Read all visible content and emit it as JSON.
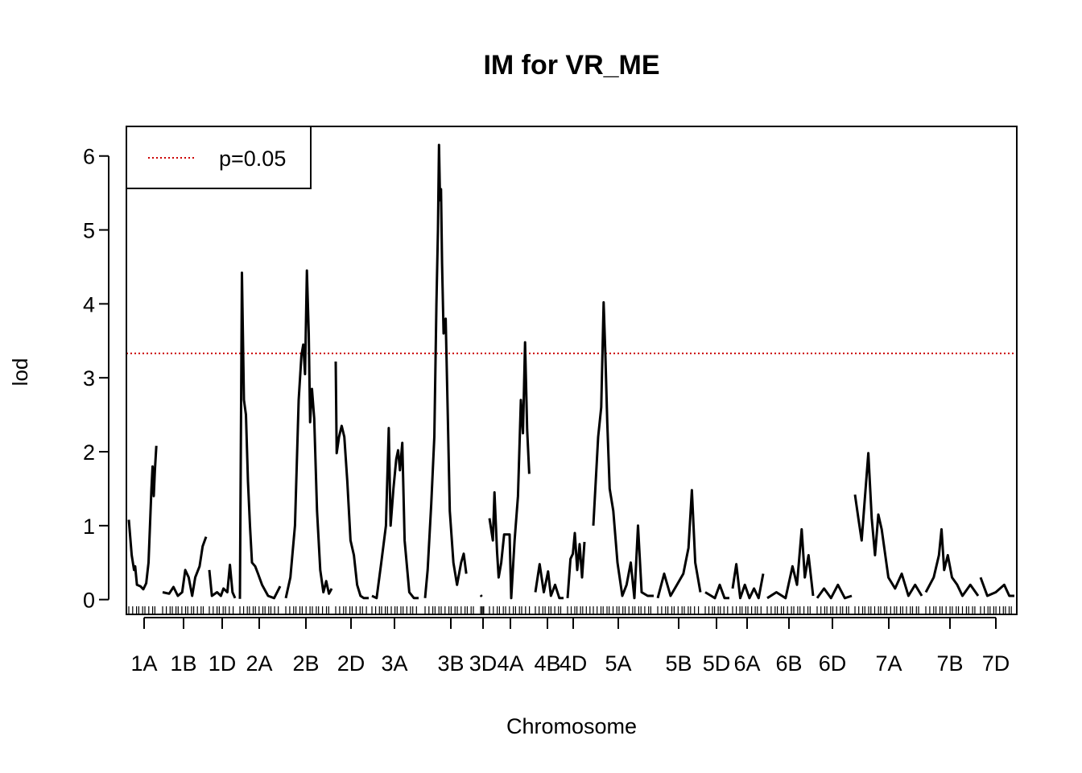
{
  "chart_data": {
    "type": "line",
    "title": "IM for VR_ME",
    "xlabel": "Chromosome",
    "ylabel": "lod",
    "ylim": [
      -0.2,
      6.4
    ],
    "yticks": [
      0,
      1,
      2,
      3,
      4,
      5,
      6
    ],
    "threshold": {
      "label": "p=0.05",
      "value": 3.33,
      "color": "#cc0000"
    },
    "legend": {
      "placement": "top-left",
      "entries": [
        "p=0.05"
      ]
    },
    "line_color": "#000000",
    "chromosomes": [
      {
        "name": "1A",
        "points": [
          [
            0,
            1.08
          ],
          [
            0.1,
            0.6
          ],
          [
            0.18,
            0.4
          ],
          [
            0.22,
            0.45
          ],
          [
            0.28,
            0.2
          ],
          [
            0.4,
            0.18
          ],
          [
            0.5,
            0.14
          ],
          [
            0.6,
            0.22
          ],
          [
            0.68,
            0.5
          ],
          [
            0.78,
            1.5
          ],
          [
            0.82,
            1.8
          ],
          [
            0.86,
            1.4
          ],
          [
            0.9,
            1.75
          ],
          [
            0.95,
            2.08
          ]
        ]
      },
      {
        "name": "1B",
        "points": [
          [
            0,
            0.1
          ],
          [
            0.15,
            0.08
          ],
          [
            0.25,
            0.17
          ],
          [
            0.35,
            0.05
          ],
          [
            0.45,
            0.1
          ],
          [
            0.52,
            0.4
          ],
          [
            0.6,
            0.3
          ],
          [
            0.68,
            0.05
          ],
          [
            0.75,
            0.3
          ],
          [
            0.85,
            0.45
          ],
          [
            0.92,
            0.72
          ],
          [
            1.0,
            0.85
          ]
        ]
      },
      {
        "name": "1D",
        "points": [
          [
            0,
            0.4
          ],
          [
            0.1,
            0.05
          ],
          [
            0.3,
            0.1
          ],
          [
            0.45,
            0.05
          ],
          [
            0.55,
            0.15
          ],
          [
            0.7,
            0.1
          ],
          [
            0.8,
            0.47
          ],
          [
            0.9,
            0.1
          ],
          [
            1.0,
            0.02
          ]
        ]
      },
      {
        "name": "2A",
        "points": [
          [
            0,
            0.01
          ],
          [
            0.05,
            4.42
          ],
          [
            0.1,
            2.7
          ],
          [
            0.15,
            2.5
          ],
          [
            0.2,
            1.6
          ],
          [
            0.25,
            1.0
          ],
          [
            0.3,
            0.5
          ],
          [
            0.38,
            0.45
          ],
          [
            0.45,
            0.35
          ],
          [
            0.55,
            0.2
          ],
          [
            0.7,
            0.05
          ],
          [
            0.85,
            0.02
          ],
          [
            1.0,
            0.18
          ]
        ]
      },
      {
        "name": "2B",
        "points": [
          [
            0,
            0.02
          ],
          [
            0.1,
            0.3
          ],
          [
            0.2,
            1.0
          ],
          [
            0.28,
            2.7
          ],
          [
            0.34,
            3.3
          ],
          [
            0.38,
            3.45
          ],
          [
            0.42,
            3.05
          ],
          [
            0.46,
            4.45
          ],
          [
            0.5,
            3.6
          ],
          [
            0.53,
            2.4
          ],
          [
            0.57,
            2.85
          ],
          [
            0.62,
            2.45
          ],
          [
            0.68,
            1.2
          ],
          [
            0.75,
            0.4
          ],
          [
            0.82,
            0.1
          ],
          [
            0.88,
            0.25
          ],
          [
            0.94,
            0.08
          ],
          [
            1.0,
            0.15
          ]
        ]
      },
      {
        "name": "2D",
        "points": [
          [
            0,
            3.22
          ],
          [
            0.03,
            1.98
          ],
          [
            0.1,
            2.2
          ],
          [
            0.18,
            2.35
          ],
          [
            0.26,
            2.2
          ],
          [
            0.35,
            1.6
          ],
          [
            0.45,
            0.8
          ],
          [
            0.55,
            0.6
          ],
          [
            0.65,
            0.2
          ],
          [
            0.75,
            0.05
          ],
          [
            0.85,
            0.02
          ],
          [
            1.0,
            0.02
          ]
        ]
      },
      {
        "name": "3A",
        "points": [
          [
            0,
            0.05
          ],
          [
            0.1,
            0.02
          ],
          [
            0.2,
            0.5
          ],
          [
            0.3,
            1.0
          ],
          [
            0.36,
            2.32
          ],
          [
            0.4,
            1.0
          ],
          [
            0.46,
            1.5
          ],
          [
            0.52,
            1.9
          ],
          [
            0.56,
            2.02
          ],
          [
            0.6,
            1.75
          ],
          [
            0.65,
            2.12
          ],
          [
            0.7,
            0.8
          ],
          [
            0.8,
            0.1
          ],
          [
            0.9,
            0.02
          ],
          [
            1.0,
            0.02
          ]
        ]
      },
      {
        "name": "3B",
        "points": [
          [
            0,
            0.02
          ],
          [
            0.05,
            0.4
          ],
          [
            0.12,
            1.3
          ],
          [
            0.18,
            2.2
          ],
          [
            0.22,
            4.0
          ],
          [
            0.25,
            5.0
          ],
          [
            0.27,
            6.15
          ],
          [
            0.29,
            5.4
          ],
          [
            0.31,
            5.55
          ],
          [
            0.33,
            4.55
          ],
          [
            0.36,
            3.6
          ],
          [
            0.4,
            3.8
          ],
          [
            0.44,
            2.5
          ],
          [
            0.48,
            1.2
          ],
          [
            0.55,
            0.5
          ],
          [
            0.62,
            0.2
          ],
          [
            0.7,
            0.5
          ],
          [
            0.75,
            0.62
          ],
          [
            0.8,
            0.35
          ]
        ]
      },
      {
        "name": "3D",
        "points": [
          [
            0,
            0.06
          ],
          [
            0.3,
            0.04
          ]
        ]
      },
      {
        "name": "4A",
        "points": [
          [
            0,
            1.1
          ],
          [
            0.08,
            0.8
          ],
          [
            0.12,
            1.45
          ],
          [
            0.18,
            0.65
          ],
          [
            0.22,
            0.3
          ],
          [
            0.28,
            0.5
          ],
          [
            0.35,
            0.88
          ],
          [
            0.48,
            0.88
          ],
          [
            0.52,
            0.02
          ],
          [
            0.6,
            0.8
          ],
          [
            0.68,
            1.4
          ],
          [
            0.75,
            2.7
          ],
          [
            0.8,
            2.25
          ],
          [
            0.85,
            3.48
          ],
          [
            0.9,
            2.3
          ],
          [
            0.95,
            1.7
          ]
        ]
      },
      {
        "name": "4B",
        "points": [
          [
            0,
            0.1
          ],
          [
            0.15,
            0.48
          ],
          [
            0.3,
            0.1
          ],
          [
            0.45,
            0.38
          ],
          [
            0.55,
            0.05
          ],
          [
            0.7,
            0.2
          ],
          [
            0.85,
            0.02
          ],
          [
            1.0,
            0.02
          ]
        ]
      },
      {
        "name": "4D",
        "points": [
          [
            0,
            0.02
          ],
          [
            0.12,
            0.55
          ],
          [
            0.22,
            0.62
          ],
          [
            0.3,
            0.9
          ],
          [
            0.4,
            0.4
          ],
          [
            0.5,
            0.75
          ],
          [
            0.6,
            0.3
          ],
          [
            0.7,
            0.78
          ]
        ]
      },
      {
        "name": "5A",
        "points": [
          [
            0,
            1.0
          ],
          [
            0.08,
            2.2
          ],
          [
            0.13,
            2.6
          ],
          [
            0.17,
            4.02
          ],
          [
            0.2,
            3.3
          ],
          [
            0.23,
            2.4
          ],
          [
            0.27,
            1.5
          ],
          [
            0.33,
            1.2
          ],
          [
            0.4,
            0.5
          ],
          [
            0.48,
            0.05
          ],
          [
            0.55,
            0.2
          ],
          [
            0.62,
            0.5
          ],
          [
            0.68,
            0.02
          ],
          [
            0.74,
            1.0
          ],
          [
            0.8,
            0.1
          ],
          [
            0.9,
            0.05
          ],
          [
            1.0,
            0.05
          ]
        ]
      },
      {
        "name": "5B",
        "points": [
          [
            0,
            0.02
          ],
          [
            0.15,
            0.35
          ],
          [
            0.3,
            0.05
          ],
          [
            0.45,
            0.2
          ],
          [
            0.6,
            0.35
          ],
          [
            0.72,
            0.7
          ],
          [
            0.8,
            1.48
          ],
          [
            0.88,
            0.5
          ],
          [
            1.0,
            0.1
          ]
        ]
      },
      {
        "name": "5D",
        "points": [
          [
            0,
            0.1
          ],
          [
            0.2,
            0.06
          ],
          [
            0.4,
            0.02
          ],
          [
            0.6,
            0.2
          ],
          [
            0.8,
            0.02
          ],
          [
            1.0,
            0.02
          ]
        ]
      },
      {
        "name": "6A",
        "points": [
          [
            0,
            0.15
          ],
          [
            0.12,
            0.48
          ],
          [
            0.25,
            0.02
          ],
          [
            0.4,
            0.2
          ],
          [
            0.55,
            0.02
          ],
          [
            0.7,
            0.15
          ],
          [
            0.85,
            0.02
          ],
          [
            1.0,
            0.35
          ]
        ]
      },
      {
        "name": "6B",
        "points": [
          [
            0,
            0.02
          ],
          [
            0.2,
            0.1
          ],
          [
            0.4,
            0.02
          ],
          [
            0.55,
            0.45
          ],
          [
            0.65,
            0.2
          ],
          [
            0.75,
            0.95
          ],
          [
            0.82,
            0.3
          ],
          [
            0.9,
            0.6
          ],
          [
            1.0,
            0.05
          ]
        ]
      },
      {
        "name": "6D",
        "points": [
          [
            0,
            0.02
          ],
          [
            0.2,
            0.15
          ],
          [
            0.4,
            0.02
          ],
          [
            0.6,
            0.2
          ],
          [
            0.8,
            0.02
          ],
          [
            1.0,
            0.05
          ]
        ]
      },
      {
        "name": "7A",
        "points": [
          [
            0,
            1.42
          ],
          [
            0.05,
            1.1
          ],
          [
            0.1,
            0.8
          ],
          [
            0.15,
            1.4
          ],
          [
            0.2,
            1.98
          ],
          [
            0.25,
            1.1
          ],
          [
            0.3,
            0.6
          ],
          [
            0.35,
            1.15
          ],
          [
            0.4,
            0.95
          ],
          [
            0.5,
            0.3
          ],
          [
            0.6,
            0.15
          ],
          [
            0.7,
            0.35
          ],
          [
            0.8,
            0.05
          ],
          [
            0.9,
            0.2
          ],
          [
            1.0,
            0.05
          ]
        ]
      },
      {
        "name": "7B",
        "points": [
          [
            0,
            0.1
          ],
          [
            0.15,
            0.3
          ],
          [
            0.25,
            0.6
          ],
          [
            0.3,
            0.95
          ],
          [
            0.35,
            0.4
          ],
          [
            0.42,
            0.6
          ],
          [
            0.5,
            0.3
          ],
          [
            0.6,
            0.2
          ],
          [
            0.7,
            0.05
          ],
          [
            0.85,
            0.2
          ],
          [
            1.0,
            0.05
          ]
        ]
      },
      {
        "name": "7D",
        "points": [
          [
            0,
            0.3
          ],
          [
            0.2,
            0.05
          ],
          [
            0.45,
            0.1
          ],
          [
            0.7,
            0.2
          ],
          [
            0.85,
            0.05
          ],
          [
            1.0,
            0.05
          ]
        ]
      }
    ]
  }
}
